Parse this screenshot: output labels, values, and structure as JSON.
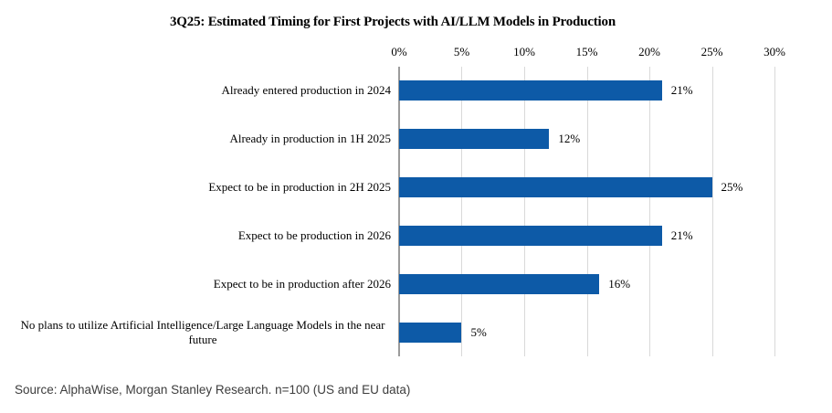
{
  "chart_data": {
    "type": "bar",
    "orientation": "horizontal",
    "title": "3Q25: Estimated Timing for First Projects with AI/LLM Models in Production",
    "categories": [
      "Already entered production in 2024",
      "Already in production in 1H 2025",
      "Expect to be in production in 2H 2025",
      "Expect to be production in 2026",
      "Expect to be in production after 2026",
      "No plans to utilize Artificial Intelligence/Large Language Models in the near future"
    ],
    "values": [
      21,
      12,
      25,
      21,
      16,
      5
    ],
    "data_labels": [
      "21%",
      "12%",
      "25%",
      "21%",
      "16%",
      "5%"
    ],
    "xlim": [
      0,
      30
    ],
    "tick_labels": [
      "0%",
      "5%",
      "10%",
      "15%",
      "20%",
      "25%",
      "30%"
    ],
    "xlabel": "",
    "ylabel": "",
    "grid": true,
    "legend": false,
    "axis_position": "top",
    "bar_color": "#0D5AA7",
    "gridline_color": "#D9D9D9",
    "axis_line_color": "#9B9B9B"
  },
  "source": "Source: AlphaWise, Morgan Stanley Research. n=100 (US and EU data)"
}
